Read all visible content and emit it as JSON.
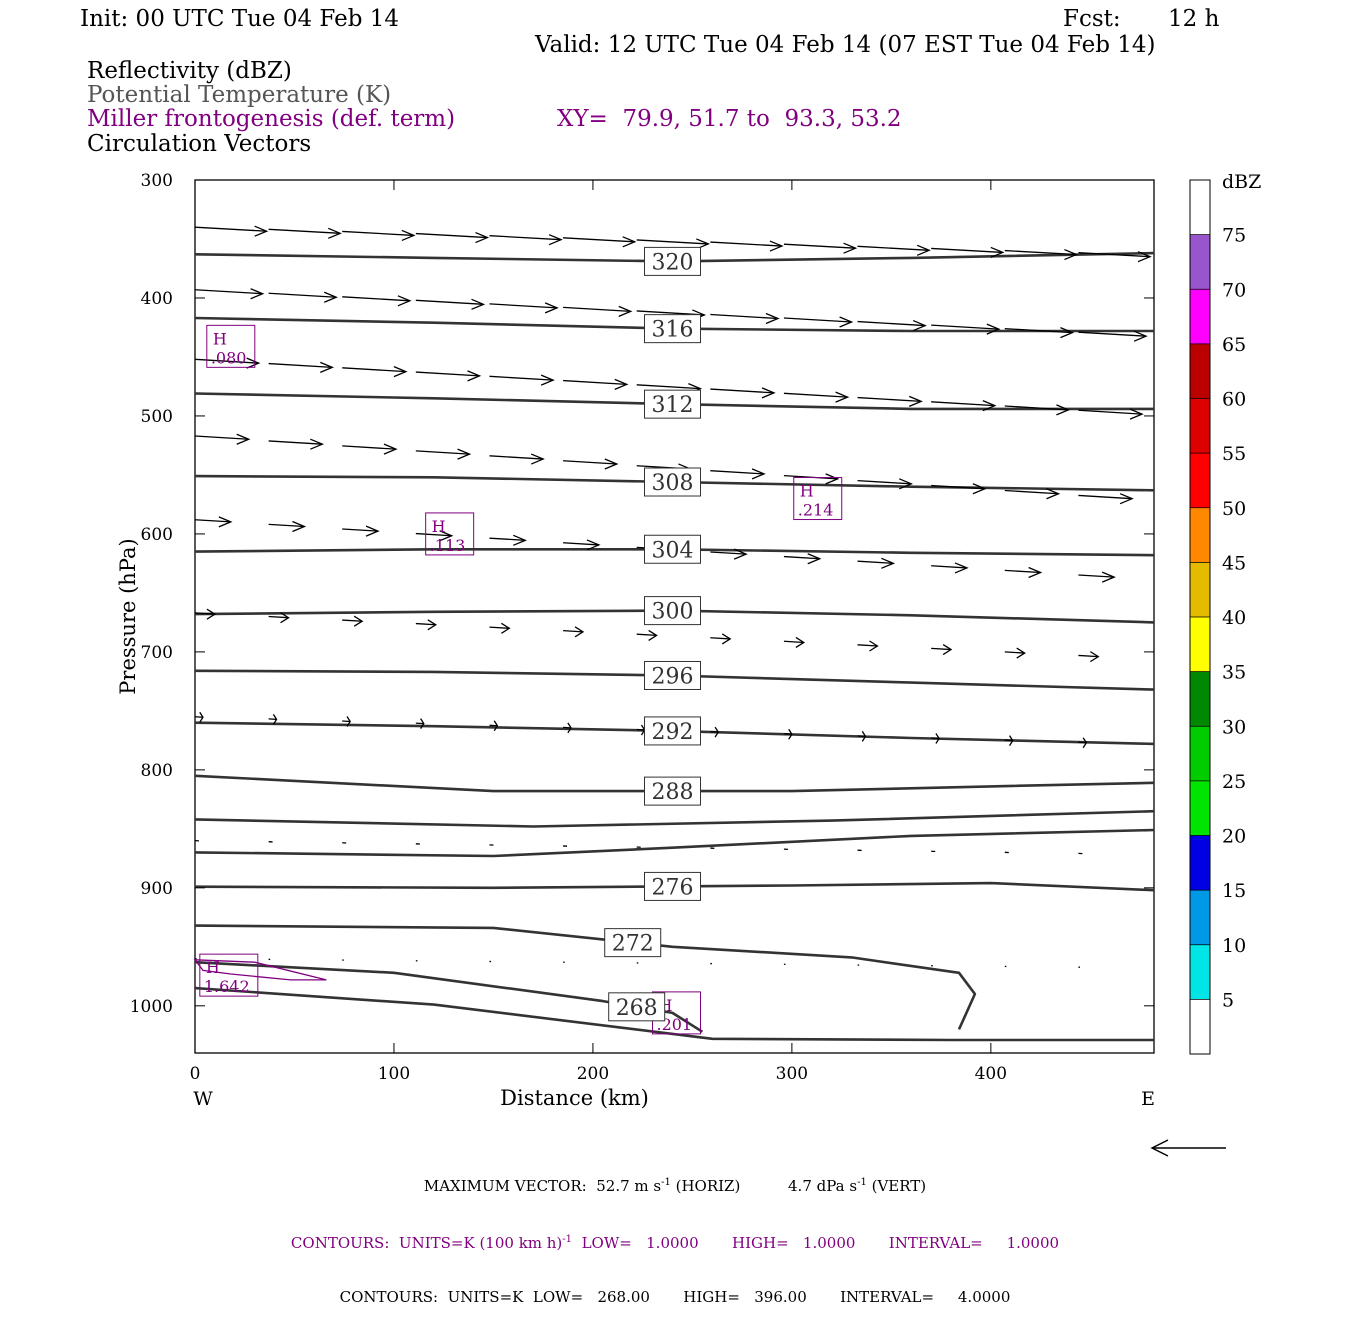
{
  "header": {
    "init": "Init: 00 UTC Tue 04 Feb 14",
    "fcst_label": "Fcst:",
    "fcst_value": "12 h",
    "valid": "Valid: 12 UTC Tue 04 Feb 14 (07 EST Tue 04 Feb 14)",
    "fields": [
      {
        "text": "Reflectivity (dBZ)",
        "color": "#000000"
      },
      {
        "text": "Potential Temperature (K)",
        "color": "#555555"
      },
      {
        "text": "Miller frontogenesis (def. term)",
        "color": "#800080"
      },
      {
        "text": "Circulation Vectors",
        "color": "#000000"
      }
    ],
    "xy": "XY=  79.9, 51.7 to  93.3, 53.2"
  },
  "chart_data": {
    "type": "contour-cross-section",
    "xlabel": "Distance (km)",
    "ylabel": "Pressure (hPa)",
    "xlim": [
      0,
      482
    ],
    "ylim": [
      300,
      1040
    ],
    "y_reversed": true,
    "x_ticks": [
      0,
      100,
      200,
      300,
      400
    ],
    "y_ticks": [
      300,
      400,
      500,
      600,
      700,
      800,
      900,
      1000
    ],
    "x_end_labels": {
      "left": "W",
      "right": "E"
    },
    "theta_contours": [
      {
        "label": "320",
        "label_x": 240,
        "points": [
          [
            0,
            363
          ],
          [
            120,
            366
          ],
          [
            240,
            369
          ],
          [
            360,
            366
          ],
          [
            482,
            362
          ]
        ]
      },
      {
        "label": "316",
        "label_x": 240,
        "points": [
          [
            0,
            417
          ],
          [
            120,
            421
          ],
          [
            240,
            426
          ],
          [
            360,
            428
          ],
          [
            482,
            428
          ]
        ]
      },
      {
        "label": "312",
        "label_x": 240,
        "points": [
          [
            0,
            481
          ],
          [
            120,
            485
          ],
          [
            240,
            490
          ],
          [
            360,
            494
          ],
          [
            482,
            494
          ]
        ]
      },
      {
        "label": "308",
        "label_x": 240,
        "points": [
          [
            0,
            551
          ],
          [
            120,
            552
          ],
          [
            240,
            556
          ],
          [
            360,
            560
          ],
          [
            482,
            563
          ]
        ]
      },
      {
        "label": "304",
        "label_x": 240,
        "points": [
          [
            0,
            615
          ],
          [
            120,
            613
          ],
          [
            240,
            613
          ],
          [
            360,
            616
          ],
          [
            482,
            618
          ]
        ]
      },
      {
        "label": "300",
        "label_x": 240,
        "points": [
          [
            0,
            668
          ],
          [
            120,
            666
          ],
          [
            240,
            665
          ],
          [
            360,
            669
          ],
          [
            482,
            675
          ]
        ]
      },
      {
        "label": "296",
        "label_x": 240,
        "points": [
          [
            0,
            716
          ],
          [
            120,
            717
          ],
          [
            240,
            720
          ],
          [
            360,
            726
          ],
          [
            482,
            732
          ]
        ]
      },
      {
        "label": "292",
        "label_x": 240,
        "points": [
          [
            0,
            760
          ],
          [
            120,
            763
          ],
          [
            240,
            767
          ],
          [
            360,
            773
          ],
          [
            482,
            778
          ]
        ]
      },
      {
        "label": "288",
        "label_x": 240,
        "points": [
          [
            0,
            805
          ],
          [
            150,
            818
          ],
          [
            300,
            818
          ],
          [
            400,
            814
          ],
          [
            482,
            811
          ]
        ]
      },
      {
        "label": "",
        "label_x": null,
        "points": [
          [
            0,
            842
          ],
          [
            170,
            848
          ],
          [
            320,
            843
          ],
          [
            482,
            835
          ]
        ]
      },
      {
        "label": "",
        "label_x": null,
        "points": [
          [
            0,
            870
          ],
          [
            150,
            873
          ],
          [
            240,
            866
          ],
          [
            360,
            856
          ],
          [
            482,
            851
          ]
        ]
      },
      {
        "label": "276",
        "label_x": 240,
        "points": [
          [
            0,
            899
          ],
          [
            150,
            900
          ],
          [
            300,
            898
          ],
          [
            400,
            896
          ],
          [
            482,
            902
          ]
        ]
      },
      {
        "label": "272",
        "label_x": 220,
        "points": [
          [
            0,
            932
          ],
          [
            150,
            934
          ],
          [
            240,
            950
          ],
          [
            330,
            959
          ],
          [
            384,
            972
          ],
          [
            392,
            990
          ],
          [
            384,
            1020
          ]
        ]
      },
      {
        "label": "268",
        "label_x": 222,
        "points": [
          [
            0,
            963
          ],
          [
            100,
            972
          ],
          [
            205,
            996
          ],
          [
            240,
            1006
          ],
          [
            255,
            1022
          ]
        ]
      },
      {
        "label": "",
        "label_x": null,
        "points": [
          [
            0,
            985
          ],
          [
            120,
            999
          ],
          [
            260,
            1028
          ],
          [
            380,
            1029
          ],
          [
            482,
            1029
          ]
        ]
      }
    ],
    "frontogenesis_highs": [
      {
        "label": "H",
        "value": ".080",
        "x": 18,
        "p": 441
      },
      {
        "label": "H",
        "value": ".113",
        "x": 128,
        "p": 600
      },
      {
        "label": "H",
        "value": ".214",
        "x": 313,
        "p": 570
      },
      {
        "label": "H",
        "value": "1.642",
        "x": 17,
        "p": 974
      },
      {
        "label": "H",
        "value": ".201",
        "x": 242,
        "p": 1006
      }
    ],
    "frontogenesis_contour": {
      "points": [
        [
          0,
          961
        ],
        [
          30,
          963
        ],
        [
          66,
          978
        ],
        [
          48,
          978
        ],
        [
          18,
          973
        ],
        [
          4,
          970
        ]
      ]
    },
    "vector_rows": [
      {
        "p": 340,
        "length_km": 36,
        "tilt": 0.6
      },
      {
        "p": 393,
        "length_km": 34,
        "tilt": 1.0
      },
      {
        "p": 452,
        "length_km": 32,
        "tilt": 1.2
      },
      {
        "p": 517,
        "length_km": 27,
        "tilt": 1.4
      },
      {
        "p": 588,
        "length_km": 18,
        "tilt": 1.3
      },
      {
        "p": 667,
        "length_km": 10,
        "tilt": 1.0
      },
      {
        "p": 755,
        "length_km": 4,
        "tilt": 0.6
      },
      {
        "p": 860,
        "length_km": 2,
        "tilt": 0.3
      },
      {
        "p": 960,
        "length_km": 0.8,
        "tilt": 0.2
      }
    ],
    "colorbar": {
      "unit": "dBZ",
      "levels": [
        5,
        10,
        15,
        20,
        25,
        30,
        35,
        40,
        45,
        50,
        55,
        60,
        65,
        70,
        75
      ],
      "colors": [
        "#00e5e5",
        "#0099e5",
        "#0000e5",
        "#00e500",
        "#00cc00",
        "#008800",
        "#ffff00",
        "#e5bb00",
        "#ff8800",
        "#ff0000",
        "#dd0000",
        "#bb0000",
        "#ff00ff",
        "#9955cc",
        "#ffffff"
      ]
    }
  },
  "footer": {
    "line1_a": "MAXIMUM VECTOR:  52.7 m s",
    "line1_b": "-1",
    "line1_c": " (HORIZ)          4.7 dPa s",
    "line1_d": "-1",
    "line1_e": " (VERT)",
    "line2_a": "CONTOURS:  UNITS=K (100 km h)",
    "line2_b": "-1",
    "line2_c": "  LOW=   1.0000       HIGH=   1.0000       INTERVAL=     1.0000",
    "line3": "CONTOURS:  UNITS=K  LOW=   268.00       HIGH=   396.00       INTERVAL=     4.0000"
  }
}
